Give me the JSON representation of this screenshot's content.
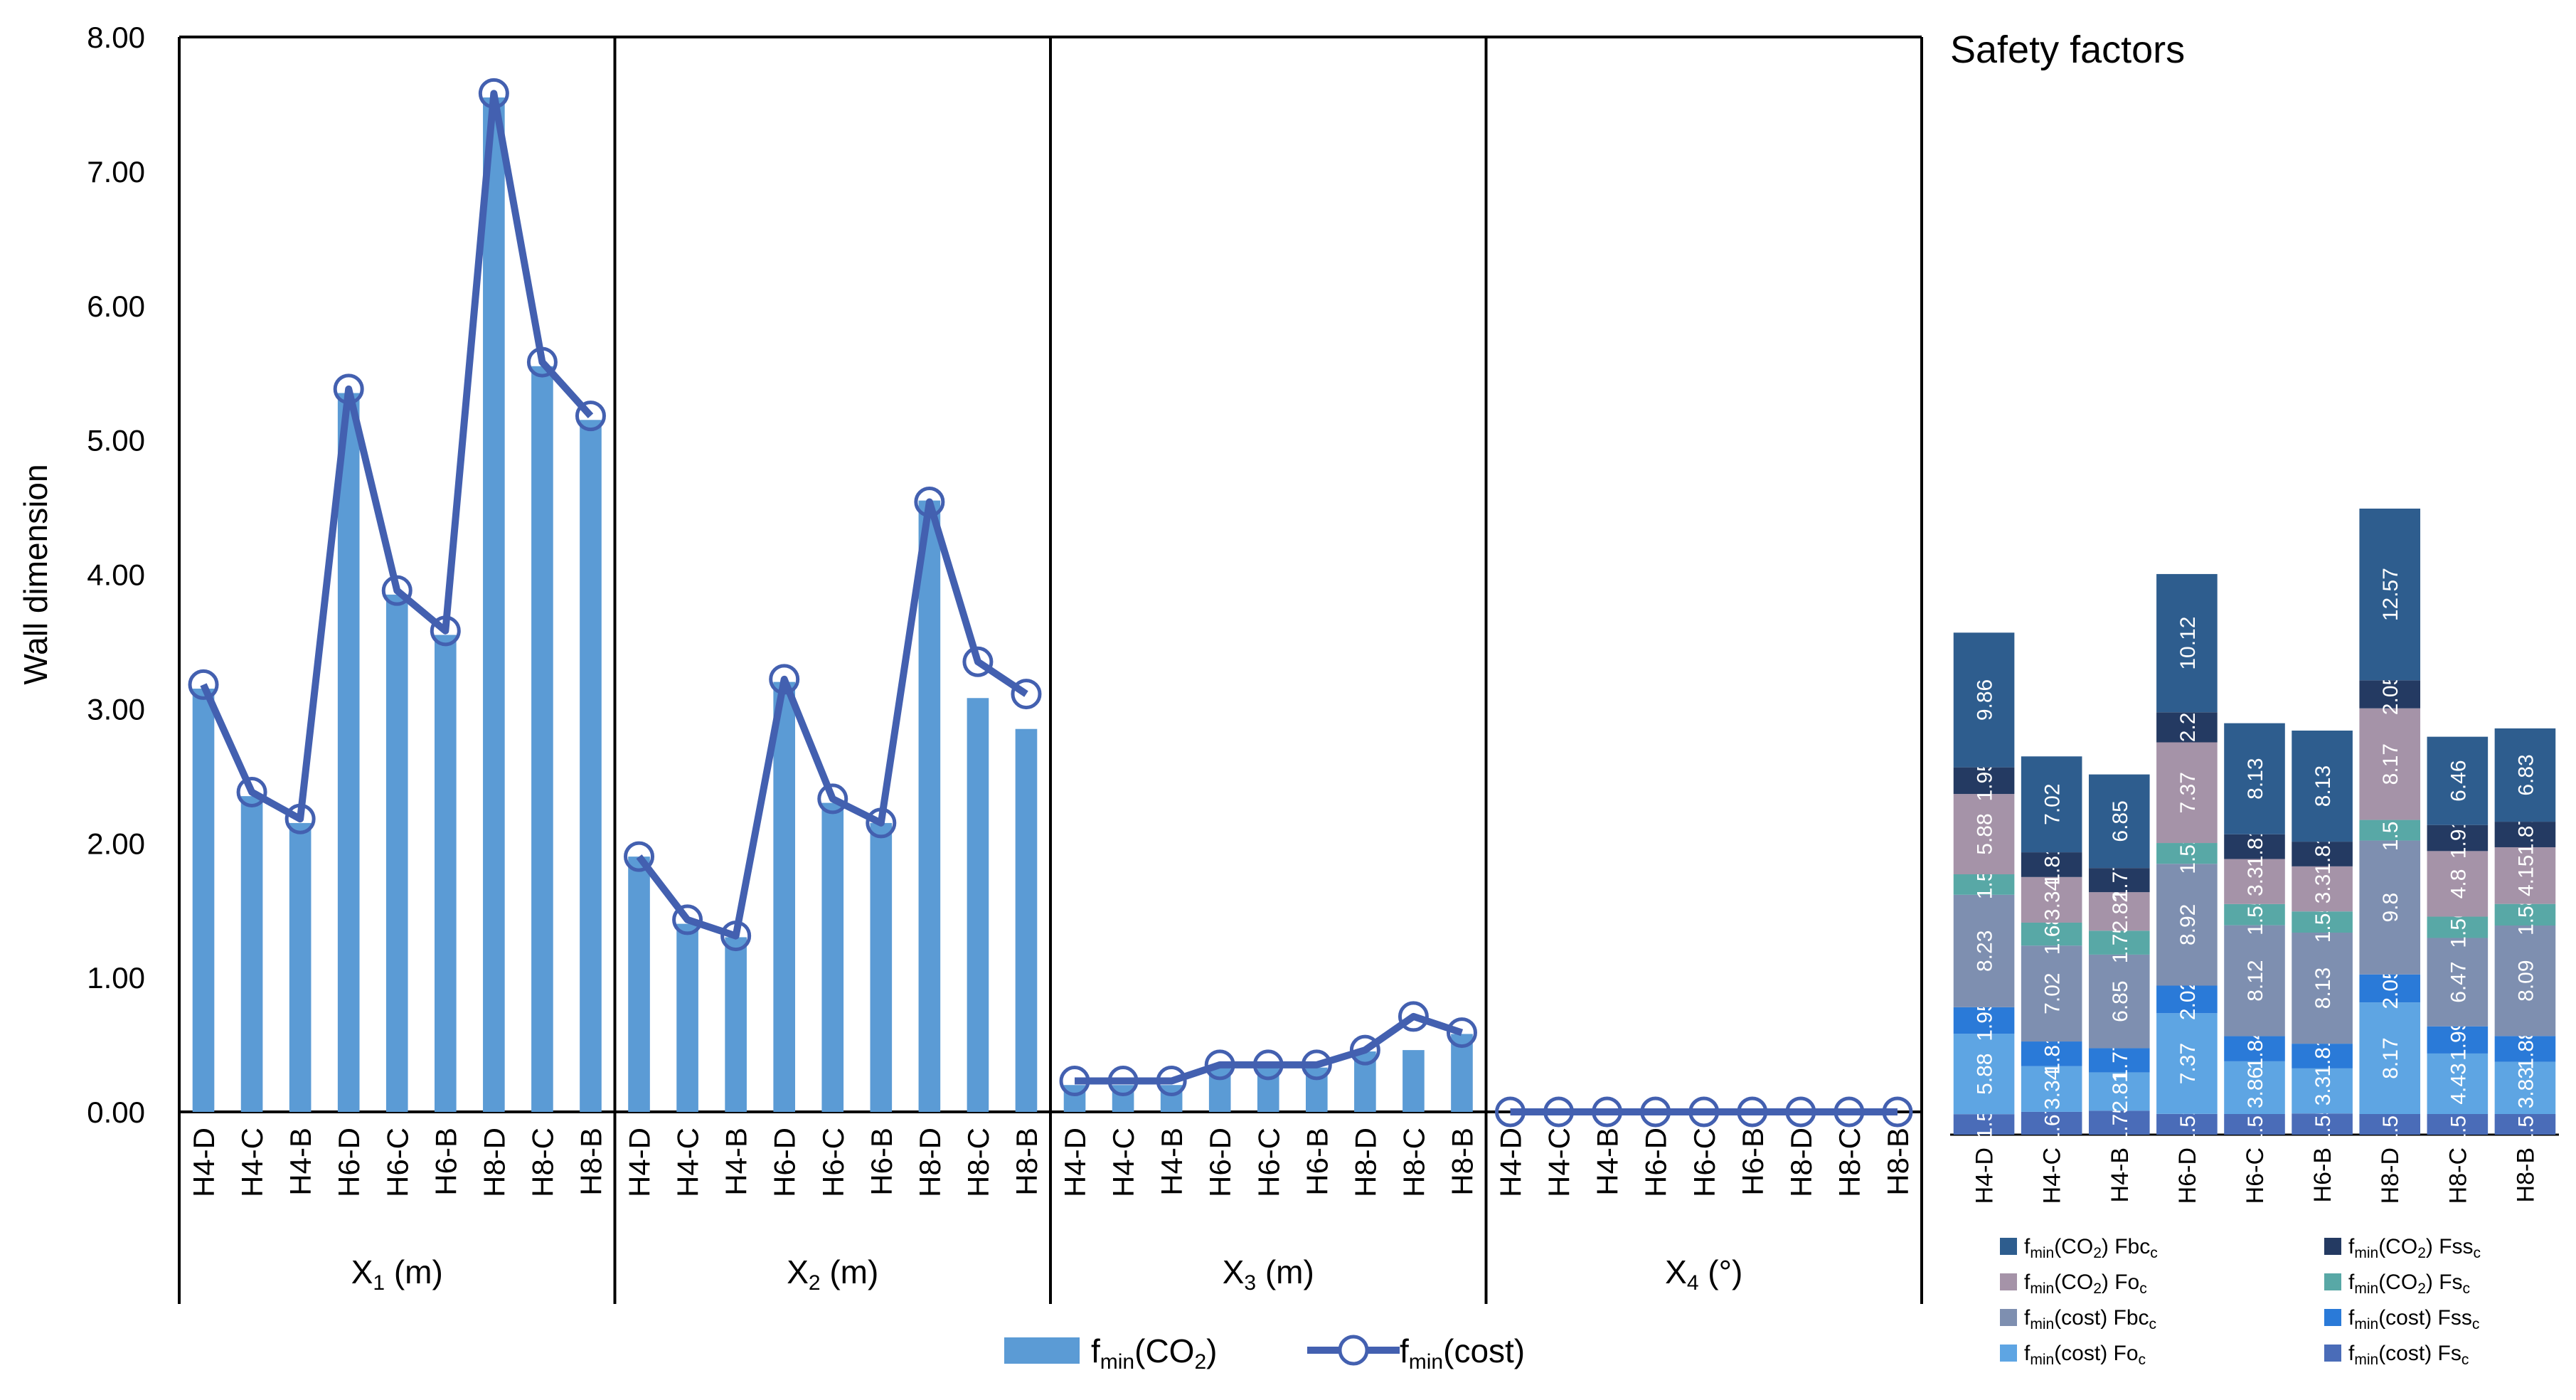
{
  "chart_data": [
    {
      "type": "bar+line",
      "ylabel": "Wall dimension",
      "ylim": [
        0,
        8
      ],
      "yticks": [
        "0.00",
        "1.00",
        "2.00",
        "3.00",
        "4.00",
        "5.00",
        "6.00",
        "7.00",
        "8.00"
      ],
      "categories": [
        "H4-D",
        "H4-C",
        "H4-B",
        "H6-D",
        "H6-C",
        "H6-B",
        "H8-D",
        "H8-C",
        "H8-B"
      ],
      "legend": {
        "placement": "bottom",
        "bar_main": "f",
        "bar_sub": "min",
        "bar_tail": "(CO",
        "bar_sub2": "2",
        "bar_end": ")",
        "line_main": "f",
        "line_sub": "min",
        "line_tail": "(cost)"
      },
      "colors": {
        "bar": "#5b9bd5",
        "line": "#4360b0"
      },
      "panels": [
        {
          "group": "X",
          "sub": "1",
          "unit": " (m)",
          "bar_values": [
            3.15,
            2.35,
            2.15,
            5.35,
            3.85,
            3.55,
            7.55,
            5.55,
            5.15
          ],
          "line_values": [
            3.18,
            2.38,
            2.18,
            5.38,
            3.88,
            3.58,
            7.58,
            5.58,
            5.18
          ]
        },
        {
          "group": "X",
          "sub": "2",
          "unit": " (m)",
          "bar_values": [
            1.9,
            1.4,
            1.3,
            3.2,
            2.3,
            2.15,
            4.55,
            3.08,
            2.85
          ],
          "line_values": [
            1.9,
            1.43,
            1.31,
            3.22,
            2.33,
            2.15,
            4.54,
            3.35,
            3.11
          ]
        },
        {
          "group": "X",
          "sub": "3",
          "unit": " (m)",
          "bar_values": [
            0.2,
            0.2,
            0.2,
            0.33,
            0.33,
            0.33,
            0.45,
            0.46,
            0.58
          ],
          "line_values": [
            0.23,
            0.23,
            0.23,
            0.35,
            0.35,
            0.35,
            0.46,
            0.71,
            0.59
          ]
        },
        {
          "group": "X",
          "sub": "4",
          "unit": " (°)",
          "bar_values": [
            0,
            0,
            0,
            0,
            0,
            0,
            0,
            0,
            0
          ],
          "line_values": [
            0,
            0,
            0,
            0,
            0,
            0,
            0,
            0,
            0
          ]
        }
      ]
    },
    {
      "type": "stacked-bar",
      "title": "Safety factors",
      "ymax": 7.9,
      "categories": [
        "H4-D",
        "H4-C",
        "H4-B",
        "H6-D",
        "H6-C",
        "H6-B",
        "H8-D",
        "H8-C",
        "H8-B"
      ],
      "series": [
        {
          "name_pre": "f",
          "name_sub": "min",
          "name_mid": "(cost) Fs",
          "name_sub2": "c",
          "color": "#4a6cb8",
          "values": [
            1.5,
            1.67,
            1.75,
            1.52,
            1.51,
            1.55,
            1.51,
            1.51,
            1.51
          ],
          "labels": [
            "1.5",
            "1.67",
            "1.75",
            "1.52",
            "1.51",
            "1.55",
            "1.51",
            "1.51",
            "1.51"
          ]
        },
        {
          "name_pre": "f",
          "name_sub": "min",
          "name_mid": "(cost) Fo",
          "name_sub2": "c",
          "color": "#5ea5e3",
          "values": [
            5.88,
            3.34,
            2.81,
            7.37,
            3.86,
            3.3,
            8.17,
            4.43,
            3.83
          ],
          "labels": [
            "5.88",
            "3.34",
            "2.81",
            "7.37",
            "3.86",
            "3.3",
            "8.17",
            "4.43",
            "3.83"
          ]
        },
        {
          "name_pre": "f",
          "name_sub": "min",
          "name_mid": "(cost) Fss",
          "name_sub2": "c",
          "color": "#2a7ad8",
          "values": [
            1.95,
            1.81,
            1.77,
            2.02,
            1.84,
            1.81,
            2.05,
            1.99,
            1.88
          ],
          "labels": [
            "1.95",
            "1.81",
            "1.77",
            "2.02",
            "1.84",
            "1.81",
            "2.05",
            "1.99",
            "1.88"
          ]
        },
        {
          "name_pre": "f",
          "name_sub": "min",
          "name_mid": "(cost) Fbc",
          "name_sub2": "c",
          "color": "#7e8fb0",
          "values": [
            8.23,
            7.02,
            6.85,
            8.92,
            8.12,
            8.13,
            9.8,
            6.47,
            8.09
          ],
          "labels": [
            "8.23",
            "7.02",
            "6.85",
            "8.92",
            "8.12",
            "8.13",
            "9.8",
            "6.47",
            "8.09"
          ]
        },
        {
          "name_pre": "f",
          "name_sub": "min",
          "name_mid": "(CO",
          "name_sub3": "2",
          "name_mid2": ") Fs",
          "name_sub2": "c",
          "color": "#58a8a6",
          "values": [
            1.5,
            1.68,
            1.75,
            1.52,
            1.55,
            1.55,
            1.51,
            1.56,
            1.58
          ],
          "labels": [
            "1.5",
            "1.68",
            "1.75",
            "1.52",
            "1.55",
            "1.55",
            "1.51",
            "1.56",
            "1.58"
          ]
        },
        {
          "name_pre": "f",
          "name_sub": "min",
          "name_mid": "(CO",
          "name_sub3": "2",
          "name_mid2": ") Fo",
          "name_sub2": "c",
          "color": "#a593a8",
          "values": [
            5.88,
            3.34,
            2.82,
            7.37,
            3.3,
            3.3,
            8.17,
            4.8,
            4.15
          ],
          "labels": [
            "5.88",
            "3.34",
            "2.82",
            "7.37",
            "3.3",
            "3.3",
            "8.17",
            "4.8",
            "4.15"
          ]
        },
        {
          "name_pre": "f",
          "name_sub": "min",
          "name_mid": "(CO",
          "name_sub3": "2",
          "name_mid2": ") Fss",
          "name_sub2": "c",
          "color": "#243a62",
          "values": [
            1.95,
            1.81,
            1.77,
            2.2,
            1.81,
            1.81,
            2.05,
            1.91,
            1.87
          ],
          "labels": [
            "1.95",
            "1.81",
            "1.77",
            "2.2",
            "1.81",
            "1.81",
            "2.05",
            "1.91",
            "1.87"
          ]
        },
        {
          "name_pre": "f",
          "name_sub": "min",
          "name_mid": "(CO",
          "name_sub3": "2",
          "name_mid2": ") Fbc",
          "name_sub2": "c",
          "color": "#2e5d8e",
          "values": [
            9.86,
            7.02,
            6.85,
            10.12,
            8.13,
            8.13,
            12.57,
            6.46,
            6.83
          ],
          "labels": [
            "9.86",
            "7.02",
            "6.85",
            "10.12",
            "8.13",
            "8.13",
            "12.57",
            "6.46",
            "6.83"
          ]
        }
      ],
      "legend_order": [
        7,
        6,
        5,
        4,
        3,
        2,
        1,
        0
      ]
    }
  ]
}
